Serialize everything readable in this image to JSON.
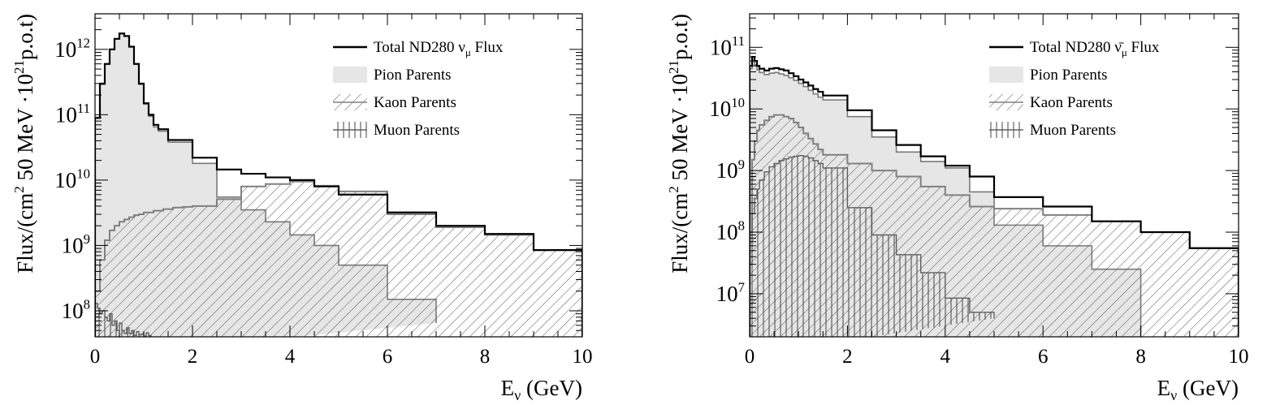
{
  "chart_data": [
    {
      "type": "line",
      "scale": "log-y",
      "xlabel": "Eν (GeV)",
      "ylabel": "Flux/(cm² 50 MeV ·10²¹ p.o.t)",
      "xlim": [
        0,
        10
      ],
      "ylim": [
        40000000,
        3500000000000
      ],
      "xticks": [
        0,
        2,
        4,
        6,
        8,
        10
      ],
      "yticks": [
        100000000,
        1000000000,
        10000000000,
        100000000000,
        1000000000000
      ],
      "legend": {
        "position": "top-right",
        "entries": [
          {
            "label": "Total ND280 νμ Flux",
            "style": "line",
            "color": "#000000"
          },
          {
            "label": "Pion Parents",
            "style": "fill",
            "color": "#e6e6e6"
          },
          {
            "label": "Kaon Parents",
            "style": "hatch",
            "color": "#808080"
          },
          {
            "label": "Muon Parents",
            "style": "vhatch",
            "color": "#606060"
          }
        ]
      },
      "series": [
        {
          "name": "Total ND280 νμ Flux",
          "role": "total",
          "edges": [
            0,
            0.1,
            0.2,
            0.3,
            0.4,
            0.5,
            0.6,
            0.7,
            0.8,
            0.9,
            1.0,
            1.1,
            1.2,
            1.3,
            1.5,
            2.0,
            2.5,
            3.0,
            3.5,
            4.0,
            4.5,
            5.0,
            6.0,
            7.0,
            8.0,
            9.0,
            10.0
          ],
          "values": [
            90000000000.0,
            300000000000.0,
            600000000000.0,
            1000000000000.0,
            1450000000000.0,
            1750000000000.0,
            1600000000000.0,
            1100000000000.0,
            600000000000.0,
            300000000000.0,
            150000000000.0,
            100000000000.0,
            70000000000.0,
            60000000000.0,
            41000000000.0,
            22000000000.0,
            14500000000.0,
            12500000000.0,
            11000000000.0,
            10000000000.0,
            8000000000.0,
            6000000000.0,
            3200000000.0,
            2000000000.0,
            1500000000.0,
            850000000.0
          ]
        },
        {
          "name": "Pion Parents",
          "role": "pion",
          "edges": [
            0,
            0.1,
            0.2,
            0.3,
            0.4,
            0.5,
            0.6,
            0.7,
            0.8,
            0.9,
            1.0,
            1.1,
            1.2,
            1.3,
            1.5,
            2.0,
            2.5,
            3.0,
            3.5,
            4.0,
            4.5,
            5.0,
            6.0,
            7.0
          ],
          "values": [
            88000000000.0,
            290000000000.0,
            590000000000.0,
            990000000000.0,
            1440000000000.0,
            1740000000000.0,
            1590000000000.0,
            1090000000000.0,
            590000000000.0,
            290000000000.0,
            145000000000.0,
            95000000000.0,
            65000000000.0,
            56000000000.0,
            38000000000.0,
            18000000000.0,
            5500000000.0,
            3500000000.0,
            2300000000.0,
            1450000000.0,
            1000000000.0,
            500000000.0,
            150000000.0,
            65000000.0
          ]
        },
        {
          "name": "Kaon Parents",
          "role": "kaon",
          "edges": [
            0,
            0.1,
            0.2,
            0.3,
            0.4,
            0.5,
            0.6,
            0.7,
            0.8,
            0.9,
            1.0,
            1.2,
            1.4,
            1.6,
            1.8,
            2.0,
            2.5,
            3.0,
            3.5,
            4.0,
            4.5,
            5.0,
            6.0,
            7.0,
            8.0,
            9.0,
            10.0
          ],
          "values": [
            200000000.0,
            600000000.0,
            1200000000.0,
            1700000000.0,
            2000000000.0,
            2300000000.0,
            2500000000.0,
            2700000000.0,
            2900000000.0,
            3000000000.0,
            3200000000.0,
            3400000000.0,
            3600000000.0,
            3800000000.0,
            3900000000.0,
            4000000000.0,
            5100000000.0,
            8000000000.0,
            8700000000.0,
            9500000000.0,
            8200000000.0,
            6700000000.0,
            3000000000.0,
            1900000000.0,
            1450000000.0,
            850000000.0
          ]
        },
        {
          "name": "Muon Parents",
          "role": "muon",
          "edges": [
            0,
            0.05,
            0.1,
            0.15,
            0.2,
            0.25,
            0.3,
            0.35,
            0.4,
            0.45,
            0.5,
            0.55,
            0.6,
            0.65,
            0.7,
            0.75,
            0.8,
            0.85,
            0.9,
            0.95,
            1.0,
            1.05,
            1.1,
            1.15
          ],
          "values": [
            130000000.0,
            110000000.0,
            90000000.0,
            100000000.0,
            80000000.0,
            70000000.0,
            90000000.0,
            60000000.0,
            70000000.0,
            50000000.0,
            65000000.0,
            50000000.0,
            45000000.0,
            55000000.0,
            45000000.0,
            50000000.0,
            42000000.0,
            48000000.0,
            43000000.0,
            44000000.0,
            41000000.0,
            46000000.0,
            42000000.0
          ]
        }
      ]
    },
    {
      "type": "line",
      "scale": "log-y",
      "xlabel": "Eν (GeV)",
      "ylabel": "Flux/(cm² 50 MeV ·10²¹ p.o.t)",
      "xlim": [
        0,
        10
      ],
      "ylim": [
        2000000,
        350000000000
      ],
      "xticks": [
        0,
        2,
        4,
        6,
        8,
        10
      ],
      "yticks": [
        10000000,
        100000000,
        1000000000,
        10000000000,
        100000000000
      ],
      "legend": {
        "position": "top-right",
        "entries": [
          {
            "label": "Total ND280 ν̄μ Flux",
            "style": "line",
            "color": "#000000"
          },
          {
            "label": "Pion Parents",
            "style": "fill",
            "color": "#e6e6e6"
          },
          {
            "label": "Kaon Parents",
            "style": "hatch",
            "color": "#808080"
          },
          {
            "label": "Muon Parents",
            "style": "vhatch",
            "color": "#606060"
          }
        ]
      },
      "series": [
        {
          "name": "Total ND280 ν̄μ Flux",
          "role": "total",
          "edges": [
            0,
            0.05,
            0.1,
            0.15,
            0.2,
            0.3,
            0.4,
            0.5,
            0.6,
            0.7,
            0.8,
            0.9,
            1.0,
            1.1,
            1.2,
            1.3,
            1.4,
            1.5,
            2.0,
            2.5,
            3.0,
            3.5,
            4.0,
            4.5,
            5.0,
            6.0,
            7.0,
            8.0,
            9.0,
            10.0
          ],
          "values": [
            50000000000.0,
            70000000000.0,
            60000000000.0,
            50000000000.0,
            45000000000.0,
            42000000000.0,
            45000000000.0,
            46000000000.0,
            44000000000.0,
            42000000000.0,
            38000000000.0,
            34000000000.0,
            30000000000.0,
            27000000000.0,
            24000000000.0,
            21000000000.0,
            19000000000.0,
            16500000000.0,
            9500000000.0,
            4500000000.0,
            2600000000.0,
            1700000000.0,
            1200000000.0,
            800000000.0,
            370000000.0,
            260000000.0,
            150000000.0,
            100000000.0,
            55000000.0
          ]
        },
        {
          "name": "Pion Parents",
          "role": "pion",
          "edges": [
            0,
            0.05,
            0.1,
            0.15,
            0.2,
            0.3,
            0.4,
            0.5,
            0.6,
            0.7,
            0.8,
            0.9,
            1.0,
            1.1,
            1.2,
            1.3,
            1.4,
            1.5,
            2.0,
            2.5,
            3.0,
            3.5,
            4.0,
            4.5,
            5.0,
            6.0,
            7.0,
            8.0
          ],
          "values": [
            45000000000.0,
            62000000000.0,
            52000000000.0,
            43000000000.0,
            39000000000.0,
            36000000000.0,
            38000000000.0,
            39000000000.0,
            37000000000.0,
            35000000000.0,
            32000000000.0,
            29000000000.0,
            26000000000.0,
            23000000000.0,
            20000000000.0,
            17500000000.0,
            15500000000.0,
            14000000000.0,
            7500000000.0,
            3500000000.0,
            2000000000.0,
            1400000000.0,
            1100000000.0,
            450000000.0,
            130000000.0,
            60000000.0,
            25000000.0
          ]
        },
        {
          "name": "Kaon Parents",
          "role": "kaon",
          "edges": [
            0,
            0.05,
            0.1,
            0.15,
            0.2,
            0.3,
            0.4,
            0.5,
            0.6,
            0.7,
            0.8,
            0.9,
            1.0,
            1.1,
            1.2,
            1.3,
            1.4,
            1.5,
            2.0,
            2.5,
            3.0,
            3.5,
            4.0,
            4.5,
            5.0,
            6.0,
            7.0,
            8.0,
            9.0,
            10.0
          ],
          "values": [
            100000000.0,
            1500000000.0,
            3000000000.0,
            4500000000.0,
            5500000000.0,
            6500000000.0,
            7500000000.0,
            8000000000.0,
            8000000000.0,
            7500000000.0,
            7000000000.0,
            6000000000.0,
            5000000000.0,
            4000000000.0,
            3300000000.0,
            2700000000.0,
            2200000000.0,
            1800000000.0,
            1300000000.0,
            1000000000.0,
            800000000.0,
            550000000.0,
            400000000.0,
            260000000.0,
            240000000.0,
            190000000.0,
            150000000.0,
            100000000.0,
            55000000.0
          ]
        },
        {
          "name": "Muon Parents",
          "role": "muon",
          "edges": [
            0,
            0.05,
            0.1,
            0.15,
            0.2,
            0.3,
            0.4,
            0.5,
            0.6,
            0.7,
            0.8,
            0.9,
            1.0,
            1.1,
            1.2,
            1.3,
            1.4,
            1.5,
            2.0,
            2.5,
            3.0,
            3.5,
            4.0,
            4.5,
            5.0
          ],
          "values": [
            30000000.0,
            200000000.0,
            350000000.0,
            500000000.0,
            700000000.0,
            950000000.0,
            1150000000.0,
            1300000000.0,
            1450000000.0,
            1550000000.0,
            1650000000.0,
            1700000000.0,
            1750000000.0,
            1700000000.0,
            1600000000.0,
            1450000000.0,
            1300000000.0,
            1100000000.0,
            250000000.0,
            90000000.0,
            43000000.0,
            22000000.0,
            8500000.0,
            5000000.0,
            4000000.0
          ]
        }
      ]
    }
  ]
}
